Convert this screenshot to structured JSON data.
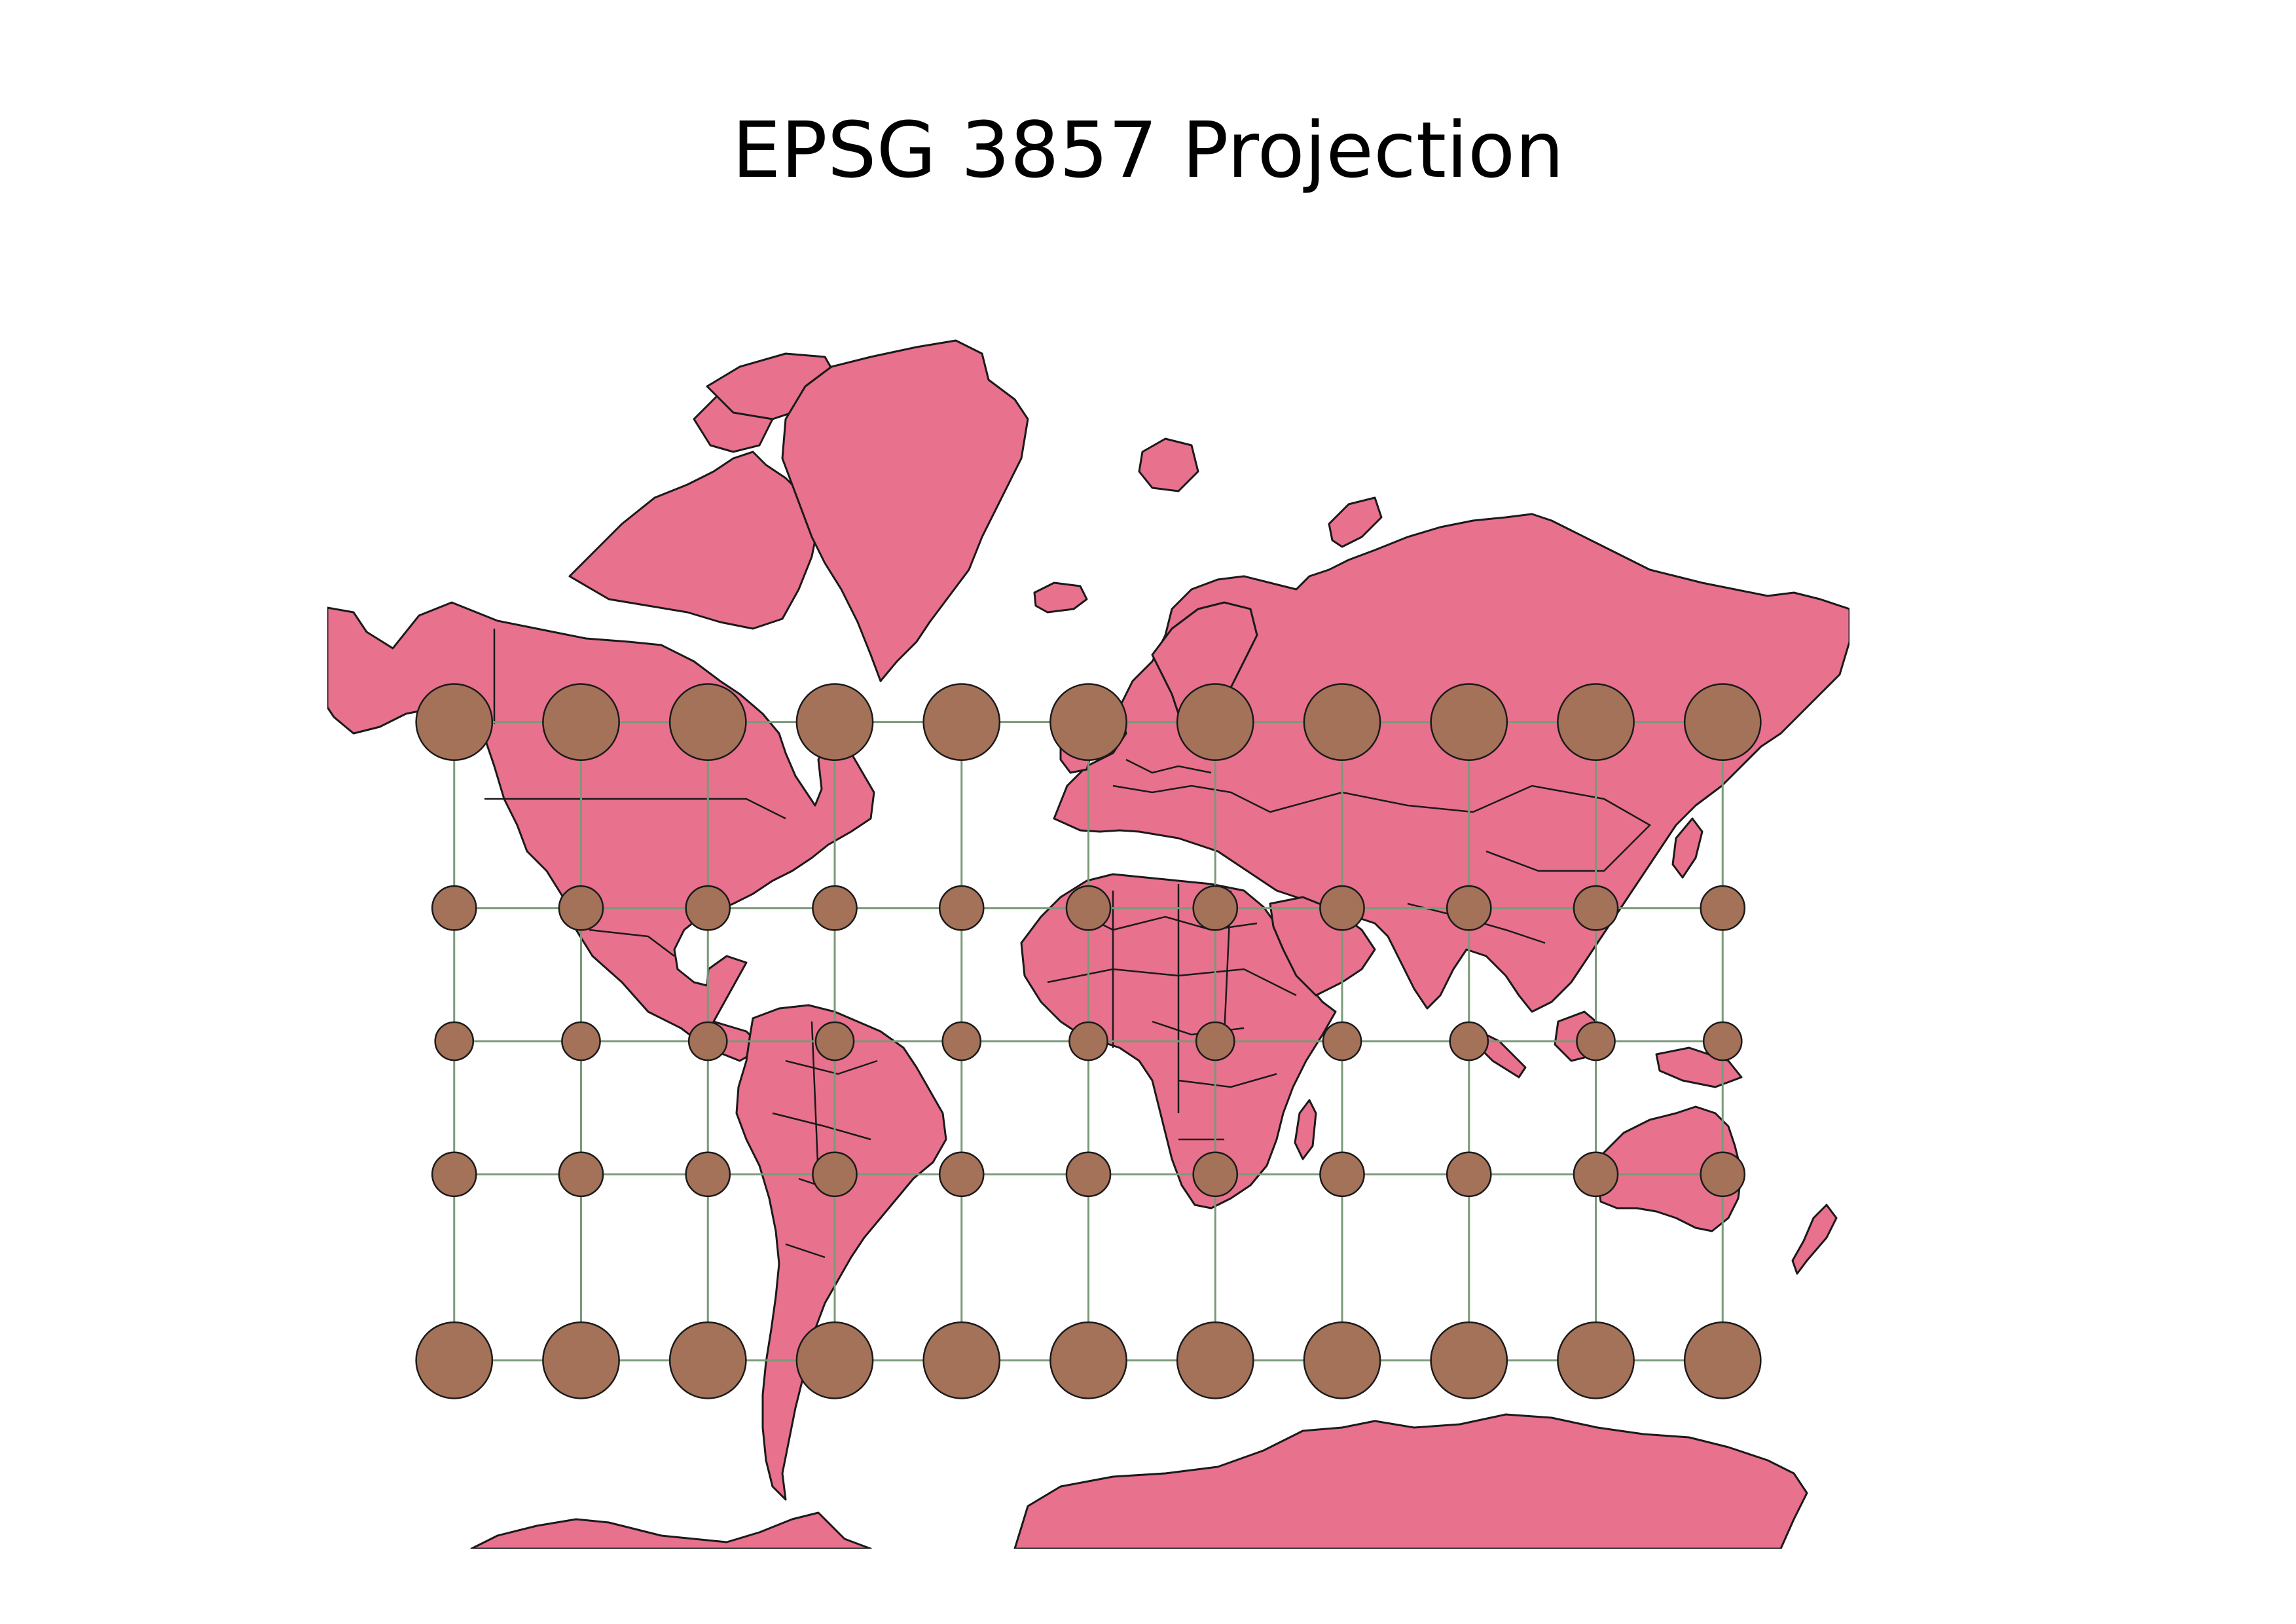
{
  "title": "EPSG 3857 Projection",
  "colors": {
    "land": "#e8718d",
    "coastline": "#1a1a1a",
    "indicatrix": "#a47159",
    "graticule": "#7a9a78",
    "background": "#ffffff"
  },
  "projection": "EPSG:3857 (Web Mercator)",
  "extent": {
    "lon": [
      -180,
      180
    ],
    "lat": [
      -85,
      85
    ]
  },
  "graticule": {
    "longitudes": [
      -150,
      -120,
      -90,
      -60,
      -30,
      0,
      30,
      60,
      90,
      120,
      150
    ],
    "latitudes": [
      60,
      30,
      0,
      -30,
      -60
    ]
  },
  "indicatrices": {
    "longitudes": [
      -150,
      -120,
      -90,
      -60,
      -30,
      0,
      30,
      60,
      90,
      120,
      150
    ],
    "latitudes": [
      60,
      30,
      0,
      -30,
      -60
    ],
    "radius_deg": 4.5
  }
}
